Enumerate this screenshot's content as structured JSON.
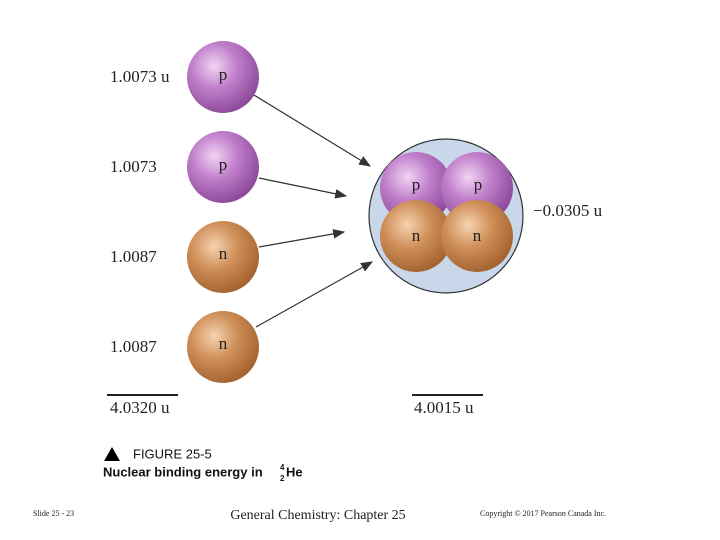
{
  "particles": [
    {
      "mass": "1.0073 u",
      "label": "p"
    },
    {
      "mass": "1.0073",
      "label": "p"
    },
    {
      "mass": "1.0087",
      "label": "n"
    },
    {
      "mass": "1.0087",
      "label": "n"
    }
  ],
  "separate_total": "4.0320 u",
  "nucleus": {
    "labels": [
      "p",
      "p",
      "n",
      "n"
    ],
    "mass_defect": "−0.0305 u",
    "total": "4.0015 u"
  },
  "caption": {
    "figure": "FIGURE 25-5",
    "text": "Nuclear binding energy  in",
    "mass_number": "4",
    "atomic_number": "2",
    "symbol": "He"
  },
  "footer": {
    "slide": "Slide 25 - 23",
    "title": "General Chemistry: Chapter 25",
    "copyright": "Copyright © 2017 Pearson Canada Inc."
  }
}
